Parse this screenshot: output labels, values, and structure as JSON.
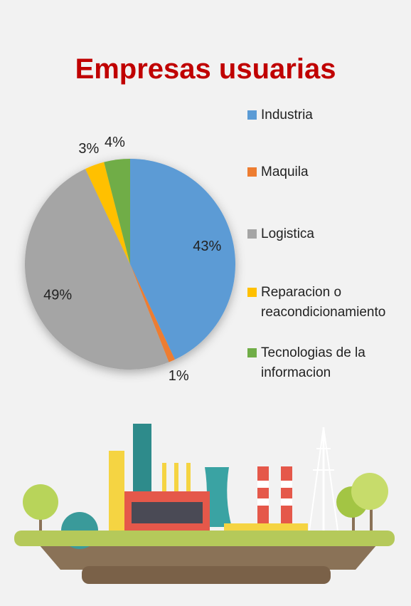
{
  "chart_data": {
    "type": "pie",
    "title": "Empresas usuarias",
    "categories": [
      "Industria",
      "Maquila",
      "Logistica",
      "Reparacion o reacondicionamiento",
      "Tecnologias de la informacion"
    ],
    "values": [
      43,
      1,
      49,
      3,
      4
    ],
    "value_labels": [
      "43%",
      "1%",
      "49%",
      "3%",
      "4%"
    ],
    "colors": [
      "#5b9bd5",
      "#ed7d31",
      "#a5a5a5",
      "#ffc000",
      "#70ad47"
    ],
    "legend": "right"
  }
}
